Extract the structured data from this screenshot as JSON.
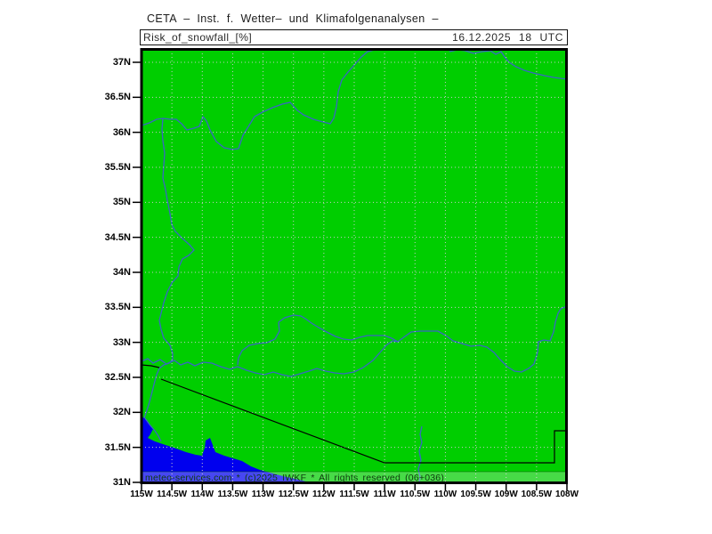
{
  "title_bar": {
    "title": "CETA – Inst. f. Wetter– und Klimafolgenanalysen –"
  },
  "header_box": {
    "variable": "Risk_of_snowfall_[%]",
    "datetime": "16.12.2025 18 UTC"
  },
  "map": {
    "footer": "meteo-services.com * (c)2025 IWKF * All rights reserved (06+036)",
    "colors": {
      "land": "#00CE00",
      "sea": "#0000EE",
      "river": "#3A66C4",
      "boundary": "#000000",
      "grid": "#C9C9C9",
      "frame": "#000000"
    }
  },
  "axes": {
    "y_labels": [
      "37N",
      "36.5N",
      "36N",
      "35.5N",
      "35N",
      "34.5N",
      "34N",
      "33.5N",
      "33N",
      "32.5N",
      "32N",
      "31.5N",
      "31N"
    ],
    "x_labels": [
      "115W",
      "114.5W",
      "114W",
      "113.5W",
      "113W",
      "112.5W",
      "112W",
      "111.5W",
      "111W",
      "110.5W",
      "110W",
      "109.5W",
      "109W",
      "108.5W",
      "108W"
    ]
  }
}
